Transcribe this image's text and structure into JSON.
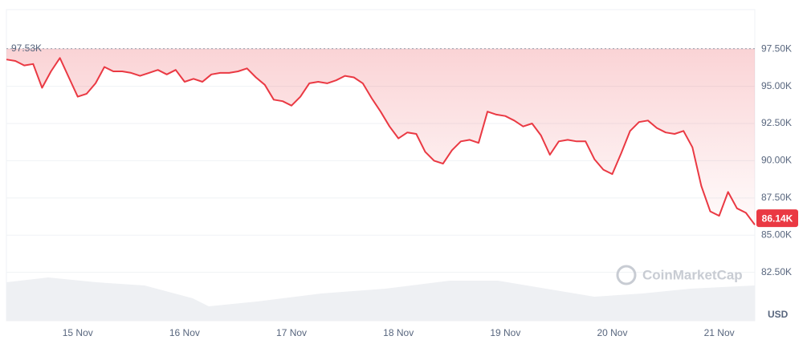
{
  "chart_data": {
    "type": "line",
    "categories": [
      null,
      null,
      null,
      null,
      null,
      null,
      null,
      null,
      "15 Nov",
      null,
      null,
      null,
      null,
      null,
      null,
      null,
      null,
      null,
      null,
      null,
      "16 Nov",
      null,
      null,
      null,
      null,
      null,
      null,
      null,
      null,
      null,
      null,
      null,
      "17 Nov",
      null,
      null,
      null,
      null,
      null,
      null,
      null,
      null,
      null,
      null,
      null,
      "18 Nov",
      null,
      null,
      null,
      null,
      null,
      null,
      null,
      null,
      null,
      null,
      null,
      "19 Nov",
      null,
      null,
      null,
      null,
      null,
      null,
      null,
      null,
      null,
      null,
      null,
      "20 Nov",
      null,
      null,
      null,
      null,
      null,
      null,
      null,
      null,
      null,
      null,
      null,
      "21 Nov",
      null,
      null,
      null,
      null
    ],
    "values": [
      96800,
      96700,
      96400,
      96500,
      94900,
      96000,
      96900,
      95600,
      94300,
      94500,
      95200,
      96300,
      96000,
      96000,
      95900,
      95700,
      95900,
      96100,
      95800,
      96100,
      95300,
      95500,
      95300,
      95800,
      95900,
      95900,
      96000,
      96200,
      95600,
      95100,
      94100,
      94000,
      93700,
      94300,
      95200,
      95300,
      95200,
      95400,
      95700,
      95600,
      95200,
      94200,
      93300,
      92300,
      91500,
      91900,
      91800,
      90600,
      90000,
      89800,
      90700,
      91300,
      91400,
      91200,
      93300,
      93100,
      93000,
      92700,
      92300,
      92500,
      91700,
      90400,
      91300,
      91400,
      91300,
      91300,
      90100,
      89400,
      89100,
      90500,
      92000,
      92600,
      92700,
      92200,
      91900,
      91800,
      92000,
      90900,
      88300,
      86600,
      86300,
      87900,
      86800,
      86500,
      85700
    ],
    "color": "#ea3943",
    "ylim": [
      79250,
      100150
    ],
    "yticks": [
      {
        "value": 82500,
        "label": "82.50K"
      },
      {
        "value": 85000,
        "label": "85.00K"
      },
      {
        "value": 87500,
        "label": "87.50K"
      },
      {
        "value": 90000,
        "label": "90.00K"
      },
      {
        "value": 92500,
        "label": "92.50K"
      },
      {
        "value": 95000,
        "label": "95.00K"
      },
      {
        "value": 97500,
        "label": "97.50K"
      }
    ],
    "grid": true,
    "y_axis_label": "USD",
    "annotations": [
      {
        "value": 97530,
        "label": "97.53K"
      },
      {
        "value": 86140,
        "label": "86.14K"
      }
    ],
    "watermark": "CoinMarketCap"
  }
}
